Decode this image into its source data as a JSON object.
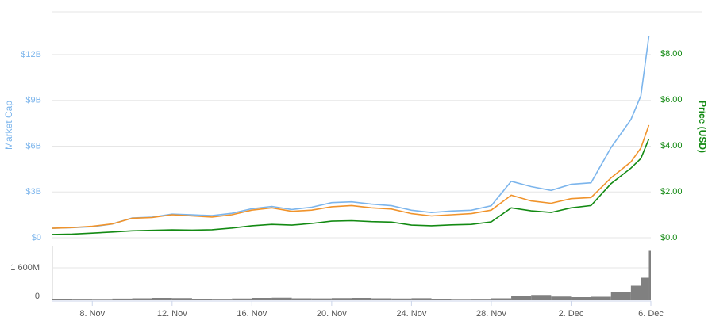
{
  "chart_data": [
    {
      "type": "line",
      "ylabel": "Market Cap",
      "y2label": "Price (USD)",
      "x": [
        0,
        1,
        2,
        3,
        4,
        5,
        6,
        7,
        8,
        9,
        10,
        11,
        12,
        13,
        14,
        15,
        16,
        17,
        18,
        19,
        20,
        21,
        22,
        23,
        24,
        25,
        26,
        27,
        28,
        29,
        29.5,
        29.9
      ],
      "xlim": [
        0,
        30
      ],
      "ylim": [
        0,
        14800000000
      ],
      "yticks": [
        {
          "value": 0,
          "label": "$0"
        },
        {
          "value": 3000000000,
          "label": "$3B"
        },
        {
          "value": 6000000000,
          "label": "$6B"
        },
        {
          "value": 9000000000,
          "label": "$9B"
        },
        {
          "value": 12000000000,
          "label": "$12B"
        }
      ],
      "y2lim": [
        0,
        9.83
      ],
      "y2ticks": [
        {
          "value": 0,
          "label": "$0.0"
        },
        {
          "value": 2,
          "label": "$2.00"
        },
        {
          "value": 4,
          "label": "$4.00"
        },
        {
          "value": 6,
          "label": "$6.00"
        },
        {
          "value": 8,
          "label": "$8.00"
        }
      ],
      "grid": true,
      "series": [
        {
          "color": "#7cb5ec",
          "axis": "y",
          "values": [
            620000000,
            660000000,
            720000000,
            900000000,
            1300000000,
            1350000000,
            1550000000,
            1500000000,
            1450000000,
            1600000000,
            1900000000,
            2050000000,
            1850000000,
            2000000000,
            2300000000,
            2350000000,
            2200000000,
            2100000000,
            1800000000,
            1650000000,
            1750000000,
            1800000000,
            2100000000,
            3700000000,
            3350000000,
            3100000000,
            3500000000,
            3600000000,
            5900000000,
            7750000000,
            9300000000,
            13200000000
          ]
        },
        {
          "color": "#f0932b",
          "axis": "y2",
          "values": [
            0.41,
            0.44,
            0.5,
            0.6,
            0.85,
            0.88,
            1.0,
            0.95,
            0.9,
            1.0,
            1.2,
            1.3,
            1.15,
            1.2,
            1.35,
            1.4,
            1.3,
            1.25,
            1.05,
            0.95,
            1.0,
            1.05,
            1.2,
            1.85,
            1.6,
            1.5,
            1.7,
            1.75,
            2.6,
            3.3,
            3.9,
            4.9
          ]
        },
        {
          "color": "#138a13",
          "axis": "y2",
          "values": [
            0.14,
            0.16,
            0.2,
            0.25,
            0.3,
            0.32,
            0.34,
            0.33,
            0.35,
            0.42,
            0.52,
            0.58,
            0.55,
            0.62,
            0.72,
            0.74,
            0.7,
            0.68,
            0.55,
            0.52,
            0.56,
            0.58,
            0.69,
            1.3,
            1.17,
            1.1,
            1.3,
            1.4,
            2.35,
            3.03,
            3.45,
            4.3
          ]
        }
      ]
    },
    {
      "type": "bar",
      "x": [
        0,
        1,
        2,
        3,
        4,
        5,
        6,
        7,
        8,
        9,
        10,
        11,
        12,
        13,
        14,
        15,
        16,
        17,
        18,
        19,
        20,
        21,
        22,
        23,
        24,
        25,
        26,
        27,
        28,
        29,
        29.5,
        29.9
      ],
      "xlim": [
        0,
        30
      ],
      "xticks": [
        {
          "value": 2,
          "label": "8. Nov"
        },
        {
          "value": 6,
          "label": "12. Nov"
        },
        {
          "value": 10,
          "label": "16. Nov"
        },
        {
          "value": 14,
          "label": "20. Nov"
        },
        {
          "value": 18,
          "label": "24. Nov"
        },
        {
          "value": 22,
          "label": "28. Nov"
        },
        {
          "value": 26,
          "label": "2. Dec"
        },
        {
          "value": 30,
          "label": "6. Dec"
        }
      ],
      "ylim": [
        0,
        2720000000
      ],
      "yticks": [
        0,
        {
          "value": 1600000000,
          "label": "1 600M"
        }
      ],
      "color": "#808080",
      "values": [
        40000000,
        35000000,
        30000000,
        45000000,
        60000000,
        80000000,
        70000000,
        40000000,
        35000000,
        50000000,
        80000000,
        90000000,
        60000000,
        55000000,
        70000000,
        80000000,
        60000000,
        50000000,
        65000000,
        40000000,
        30000000,
        35000000,
        60000000,
        200000000,
        230000000,
        150000000,
        120000000,
        140000000,
        400000000,
        700000000,
        1100000000,
        2460000000
      ]
    }
  ]
}
